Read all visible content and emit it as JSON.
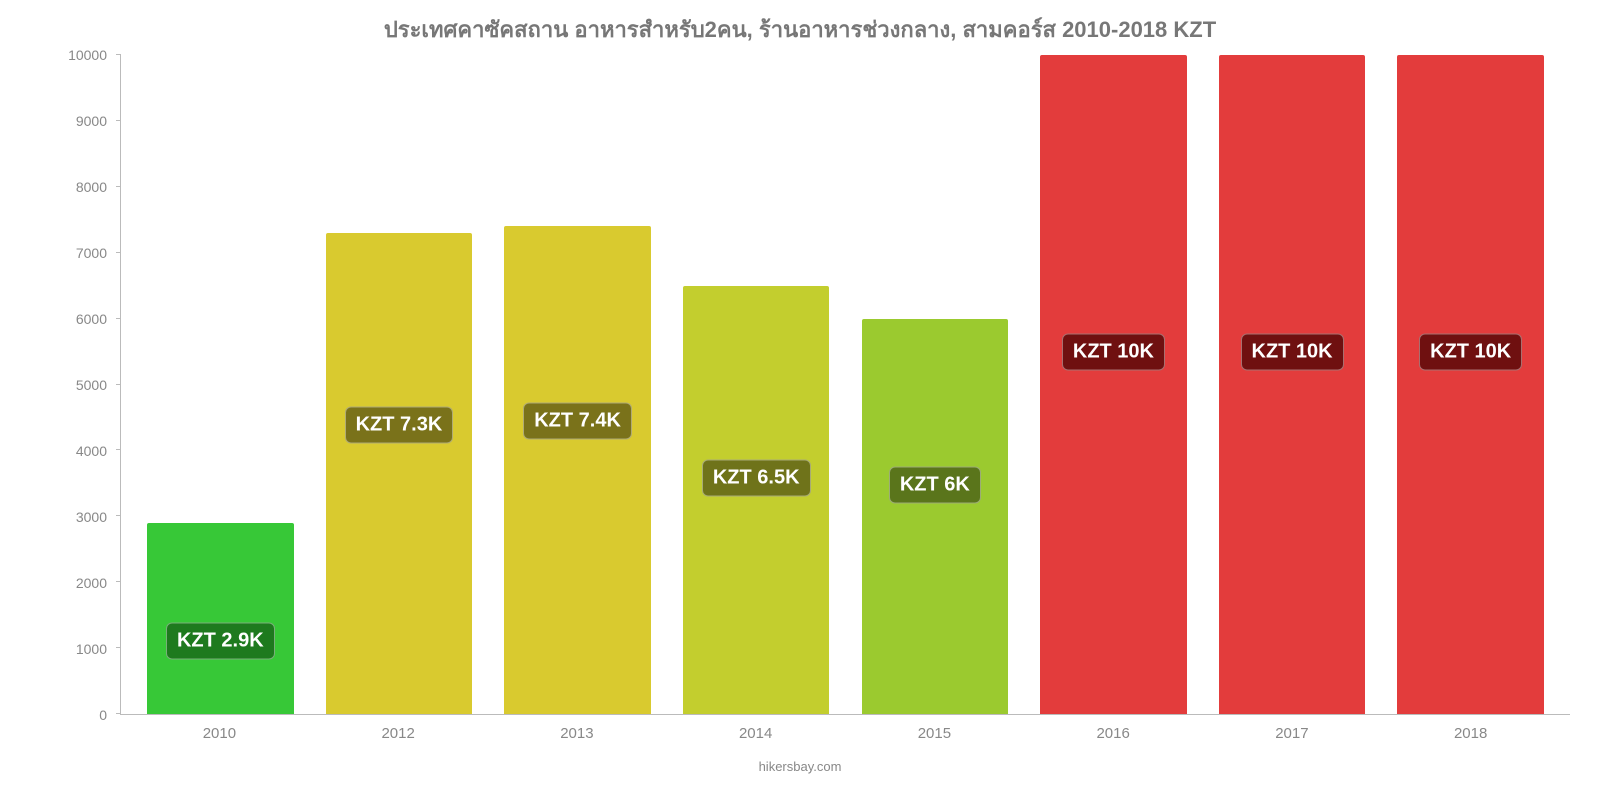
{
  "chart": {
    "type": "bar",
    "title": "ประเทศคาซัคสถาน อาหารสำหรับ2คน, ร้านอาหารช่วงกลาง, สามคอร์ส 2010-2018 KZT",
    "title_color": "#777777",
    "title_fontsize": 22,
    "background_color": "#ffffff",
    "axis_color": "#bbbbbb",
    "tick_label_color": "#888888",
    "tick_fontsize": 14,
    "attribution": "hikersbay.com",
    "ylim": [
      0,
      10000
    ],
    "yticks": [
      0,
      1000,
      2000,
      3000,
      4000,
      5000,
      6000,
      7000,
      8000,
      9000,
      10000
    ],
    "ytick_labels": [
      "0",
      "1000",
      "2000",
      "3000",
      "4000",
      "5000",
      "6000",
      "7000",
      "8000",
      "9000",
      "10000"
    ],
    "categories": [
      "2010",
      "2012",
      "2013",
      "2014",
      "2015",
      "2016",
      "2017",
      "2018"
    ],
    "values": [
      2900,
      7300,
      7400,
      6500,
      6000,
      10000,
      10000,
      10000
    ],
    "bar_labels": [
      "KZT 2.9K",
      "KZT 7.3K",
      "KZT 7.4K",
      "KZT 6.5K",
      "KZT 6K",
      "KZT 10K",
      "KZT 10K",
      "KZT 10K"
    ],
    "bar_colors": [
      "#37c837",
      "#d9ca2f",
      "#d9ca2f",
      "#c3ce2e",
      "#9bca2f",
      "#e33c3c",
      "#e33c3c",
      "#e33c3c"
    ],
    "bar_label_bg": [
      "#1e7a1e",
      "#7a721a",
      "#7a721a",
      "#6f731a",
      "#5a751b",
      "#6f1010",
      "#6f1010",
      "#6f1010"
    ],
    "bar_label_fontsize": 20,
    "bar_label_vpos_pct": [
      62,
      40,
      40,
      45,
      42,
      45,
      45,
      45
    ],
    "bar_width_pct": 82
  }
}
